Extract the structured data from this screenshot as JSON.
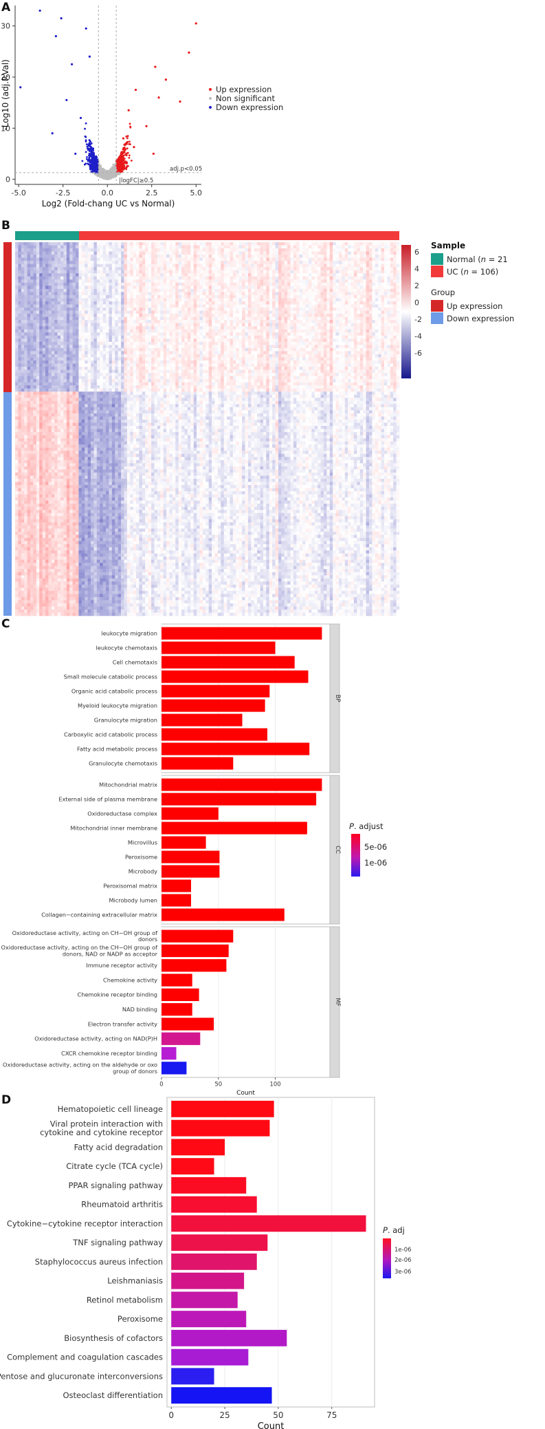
{
  "colors": {
    "up": "#e8191b",
    "down": "#1f1fc8",
    "ns": "#bdbdbd",
    "normal": "#1b9e8a",
    "uc": "#f23a3a",
    "group_up": "#d62728",
    "group_down": "#6e9be8"
  },
  "panels": {
    "a": "A",
    "b": "B",
    "c": "C",
    "d": "D"
  },
  "chart_data": [
    {
      "id": "volcano",
      "type": "scatter",
      "xlabel": "Log2 (Fold-chang UC vs Normal)",
      "ylabel": "-Log10 (adj.P.Val)",
      "xticks": [
        "-5.0",
        "-2.5",
        "0.0",
        "2.5",
        "5.0"
      ],
      "xtick_values": [
        -5,
        -2.5,
        0,
        2.5,
        5
      ],
      "yticks": [
        "0",
        "10",
        "20",
        "30"
      ],
      "ytick_values": [
        0,
        10,
        20,
        30
      ],
      "xlim": [
        -5.2,
        5.3
      ],
      "ylim": [
        -1,
        34
      ],
      "thresholds": {
        "adj": "adj.p<0.05",
        "fc": "|logFC|≥0.5",
        "fc_value": 0.5,
        "p_value": 1.3
      },
      "legend": [
        "Up expression",
        "Non significant",
        "Down expression"
      ],
      "sample_points": {
        "up": [
          [
            5.0,
            30.5
          ],
          [
            4.6,
            24.8
          ],
          [
            2.7,
            22.0
          ],
          [
            3.3,
            19.5
          ],
          [
            1.6,
            17.5
          ],
          [
            2.9,
            16.0
          ],
          [
            4.1,
            15.2
          ],
          [
            1.2,
            13.5
          ],
          [
            2.2,
            10.4
          ],
          [
            0.9,
            8.0
          ],
          [
            1.5,
            6.3
          ],
          [
            2.6,
            5.0
          ]
        ],
        "down": [
          [
            -3.8,
            33.0
          ],
          [
            -2.6,
            31.5
          ],
          [
            -1.2,
            29.5
          ],
          [
            -2.9,
            28.0
          ],
          [
            -4.9,
            18.0
          ],
          [
            -3.1,
            9.0
          ],
          [
            -2.0,
            22.5
          ],
          [
            -1.5,
            12.0
          ],
          [
            -0.8,
            6.0
          ],
          [
            -2.3,
            15.5
          ],
          [
            -1.0,
            24.0
          ],
          [
            -1.8,
            5.0
          ]
        ]
      }
    },
    {
      "id": "heatmap",
      "type": "heatmap",
      "legend_scale": [
        "6",
        "4",
        "2",
        "0",
        "-2",
        "-4",
        "-6"
      ],
      "sample_title": "Sample",
      "sample_normal_prefix": "Normal (",
      "sample_normal_n": "n",
      "sample_normal_suffix": " = 21",
      "sample_uc_prefix": "UC (",
      "sample_uc_n": "n",
      "sample_uc_suffix": " = 106)",
      "group_title": "Group",
      "group_up": "Up expression",
      "group_down": "Down expression",
      "normal_n": 21,
      "uc_n": 106
    },
    {
      "id": "go",
      "type": "bar",
      "xlabel": "Count",
      "xticks": [
        "0",
        "50",
        "100"
      ],
      "xtick_values": [
        0,
        50,
        100
      ],
      "xlim": [
        0,
        148
      ],
      "legend_title_italic": "P",
      "legend_title_rest": ". adjust",
      "legend_ticks": [
        "5e-06",
        "1e-06"
      ],
      "facets": [
        {
          "name": "BP",
          "bars": [
            {
              "label": [
                "leukocyte migration"
              ],
              "value": 141,
              "color": "#ff0000"
            },
            {
              "label": [
                "leukocyte chemotaxis"
              ],
              "value": 100,
              "color": "#ff0000"
            },
            {
              "label": [
                "Cell chemotaxis"
              ],
              "value": 117,
              "color": "#ff0000"
            },
            {
              "label": [
                "Small molecule catabolic process"
              ],
              "value": 129,
              "color": "#ff0000"
            },
            {
              "label": [
                "Organic acid catabolic process"
              ],
              "value": 95,
              "color": "#ff0000"
            },
            {
              "label": [
                "Myeloid leukocyte migration"
              ],
              "value": 91,
              "color": "#ff0000"
            },
            {
              "label": [
                "Granulocyte migration"
              ],
              "value": 71,
              "color": "#ff0000"
            },
            {
              "label": [
                "Carboxylic acid catabolic process"
              ],
              "value": 93,
              "color": "#ff0000"
            },
            {
              "label": [
                "Fatty acid metabolic process"
              ],
              "value": 130,
              "color": "#ff0000"
            },
            {
              "label": [
                "Granulocyte chemotaxis"
              ],
              "value": 63,
              "color": "#ff0000"
            }
          ]
        },
        {
          "name": "CC",
          "bars": [
            {
              "label": [
                "Mitochondrial matrix"
              ],
              "value": 141,
              "color": "#ff0000"
            },
            {
              "label": [
                "External side of plasma membrane"
              ],
              "value": 136,
              "color": "#ff0000"
            },
            {
              "label": [
                "Oxidoreductase complex"
              ],
              "value": 50,
              "color": "#ff0000"
            },
            {
              "label": [
                "Mitochondrial inner membrane"
              ],
              "value": 128,
              "color": "#ff0000"
            },
            {
              "label": [
                "Microvillus"
              ],
              "value": 39,
              "color": "#ff0000"
            },
            {
              "label": [
                "Peroxisome"
              ],
              "value": 51,
              "color": "#ff0000"
            },
            {
              "label": [
                "Microbody"
              ],
              "value": 51,
              "color": "#ff0000"
            },
            {
              "label": [
                "Peroxisomal matrix"
              ],
              "value": 26,
              "color": "#ff0000"
            },
            {
              "label": [
                "Microbody lumen"
              ],
              "value": 26,
              "color": "#ff0000"
            },
            {
              "label": [
                "Collagen−containing extracellular matrix"
              ],
              "value": 108,
              "color": "#ff0000"
            }
          ]
        },
        {
          "name": "MF",
          "bars": [
            {
              "label": [
                "Oxidoreductase activity, acting on CH−OH group of",
                "donors"
              ],
              "value": 63,
              "color": "#ff0000"
            },
            {
              "label": [
                "Oxidoreductase activity, acting on the CH−OH group of",
                "donors, NAD or NADP as acceptor"
              ],
              "value": 59,
              "color": "#ff0000"
            },
            {
              "label": [
                "Immune receptor activity"
              ],
              "value": 57,
              "color": "#ff0000"
            },
            {
              "label": [
                "Chemokine activity"
              ],
              "value": 27,
              "color": "#ff0000"
            },
            {
              "label": [
                "Chemokine receptor binding"
              ],
              "value": 33,
              "color": "#ff0000"
            },
            {
              "label": [
                "NAD binding"
              ],
              "value": 27,
              "color": "#ff0000"
            },
            {
              "label": [
                "Electron transfer activity"
              ],
              "value": 46,
              "color": "#ff0000"
            },
            {
              "label": [
                "Oxidoreductase activity, acting on NAD(P)H"
              ],
              "value": 34,
              "color": "#d3178f"
            },
            {
              "label": [
                "CXCR chemokine receptor binding"
              ],
              "value": 13,
              "color": "#b61ed4"
            },
            {
              "label": [
                "Oxidoreductase activity, acting on the aldehyde or oxo",
                "group of donors"
              ],
              "value": 22,
              "color": "#1818f0"
            }
          ]
        }
      ]
    },
    {
      "id": "kegg",
      "type": "bar",
      "xlabel": "Count",
      "xticks": [
        "0",
        "25",
        "50",
        "75"
      ],
      "xtick_values": [
        0,
        25,
        50,
        75
      ],
      "xlim": [
        -2,
        95
      ],
      "legend_title_italic": "P",
      "legend_title_rest": ". adj",
      "legend_ticks": [
        "1e-06",
        "2e-06",
        "3e-06"
      ],
      "bars": [
        {
          "label": [
            "Hematopoietic cell lineage"
          ],
          "value": 48,
          "color": "#ff0a12"
        },
        {
          "label": [
            "Viral protein interaction with",
            "cytokine and cytokine receptor"
          ],
          "value": 46,
          "color": "#ff0a14"
        },
        {
          "label": [
            "Fatty acid degradation"
          ],
          "value": 25,
          "color": "#ff0a14"
        },
        {
          "label": [
            "Citrate cycle (TCA cycle)"
          ],
          "value": 20,
          "color": "#ff0a16"
        },
        {
          "label": [
            "PPAR signaling pathway"
          ],
          "value": 35,
          "color": "#fc0c22"
        },
        {
          "label": [
            "Rheumatoid arthritis"
          ],
          "value": 40,
          "color": "#f80e30"
        },
        {
          "label": [
            "Cytokine−cytokine receptor interaction"
          ],
          "value": 91,
          "color": "#f2103c"
        },
        {
          "label": [
            "TNF signaling pathway"
          ],
          "value": 45,
          "color": "#ee124a"
        },
        {
          "label": [
            "Staphylococcus aureus infection"
          ],
          "value": 40,
          "color": "#e0146a"
        },
        {
          "label": [
            "Leishmaniasis"
          ],
          "value": 34,
          "color": "#d2168a"
        },
        {
          "label": [
            "Retinol metabolism"
          ],
          "value": 31,
          "color": "#c418a8"
        },
        {
          "label": [
            "Peroxisome"
          ],
          "value": 35,
          "color": "#bc18b8"
        },
        {
          "label": [
            "Biosynthesis of cofactors"
          ],
          "value": 54,
          "color": "#b21ac8"
        },
        {
          "label": [
            "Complement and coagulation cascades"
          ],
          "value": 36,
          "color": "#a81cd4"
        },
        {
          "label": [
            "Pentose and glucuronate interconversions"
          ],
          "value": 20,
          "color": "#2b1ef0"
        },
        {
          "label": [
            "Osteoclast differentiation"
          ],
          "value": 47,
          "color": "#1414f4"
        }
      ]
    }
  ]
}
